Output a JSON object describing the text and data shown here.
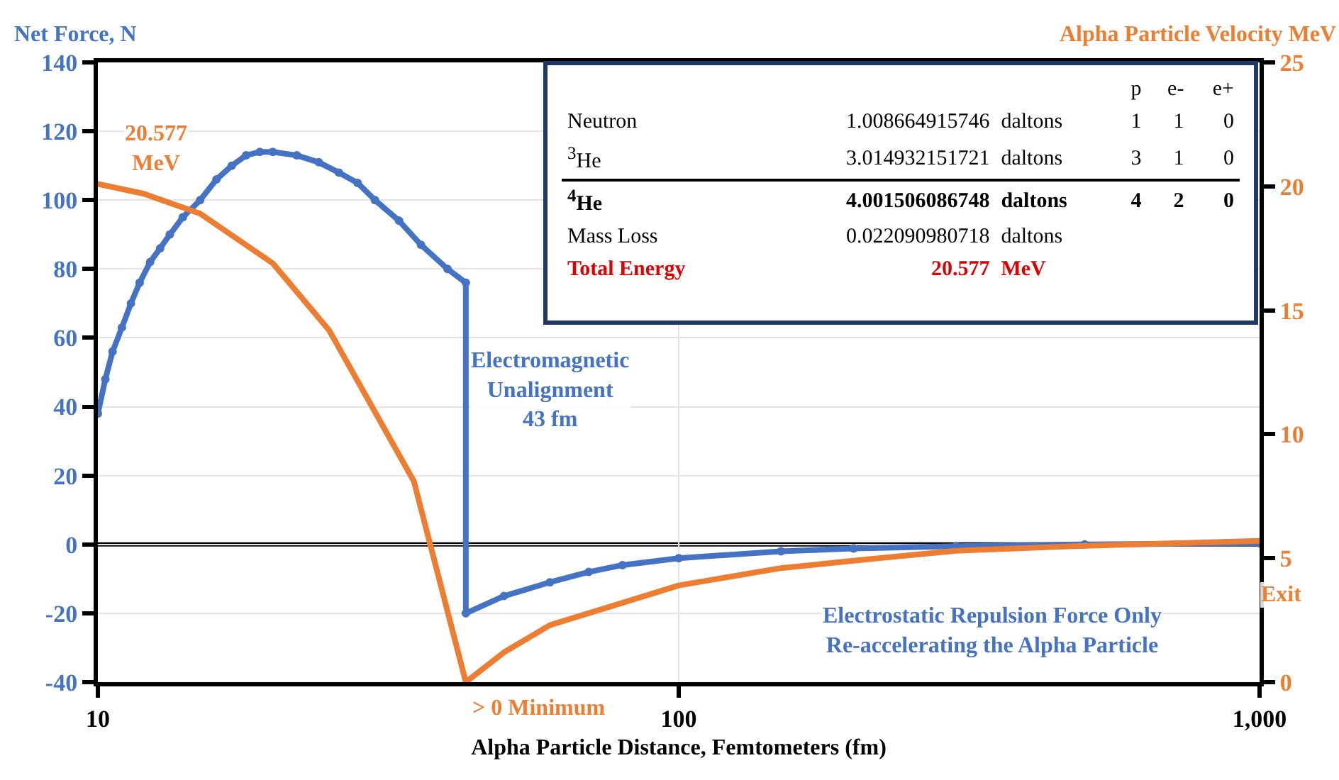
{
  "chart_data": {
    "type": "line",
    "xlabel": "Alpha Particle Distance, Femtometers (fm)",
    "ylabel": "Net Force, N",
    "y2label": "Alpha Particle Velocity MeV",
    "log": "x",
    "xlim": [
      10,
      1000
    ],
    "xticks": [
      10,
      100,
      {
        "value": 1000,
        "label": "1,000"
      }
    ],
    "ylim": [
      -40,
      140
    ],
    "yticks": [
      -40,
      -20,
      0,
      20,
      40,
      60,
      80,
      100,
      120,
      140
    ],
    "y2lim": [
      0,
      25
    ],
    "y2ticks": [
      0,
      5,
      10,
      15,
      20,
      25
    ],
    "grid": true,
    "series": [
      {
        "color": "#4472c4",
        "marker": "circle",
        "x": [
          10,
          10.3,
          10.6,
          11,
          11.4,
          11.8,
          12.3,
          12.8,
          13.3,
          14,
          15,
          16,
          17,
          18,
          19,
          20,
          22,
          24,
          26,
          28,
          30,
          33,
          36,
          40,
          43,
          43,
          50,
          60,
          70,
          80,
          100,
          150,
          200,
          300,
          500,
          1000
        ],
        "values": [
          38,
          48,
          56,
          63,
          70,
          76,
          82,
          86,
          90,
          95,
          100,
          106,
          110,
          113,
          114,
          114,
          113,
          111,
          108,
          105,
          100,
          94,
          87,
          80,
          76,
          -20,
          -15,
          -11,
          -8,
          -6,
          -4,
          -2,
          -1.2,
          -0.5,
          0,
          0.3
        ]
      },
      {
        "color": "#ed7d31",
        "axis": "y2",
        "marker": "none",
        "x": [
          10,
          12,
          15,
          20,
          25,
          30,
          35,
          43,
          50,
          60,
          80,
          100,
          150,
          200,
          300,
          500,
          1000
        ],
        "values": [
          20.1,
          19.7,
          18.9,
          16.9,
          14.2,
          10.9,
          8.1,
          0,
          1.2,
          2.3,
          3.2,
          3.9,
          4.6,
          4.9,
          5.3,
          5.5,
          5.7
        ]
      }
    ],
    "ref_lines": [
      {
        "axis": "y",
        "value": 0,
        "color": "#000000"
      }
    ],
    "annotations": [
      "20.577\nMeV",
      "Electromagnetic\nUnalignment\n43 fm",
      "> 0 Minimum",
      "Electrostatic Repulsion Force Only\nRe-accelerating the Alpha Particle",
      "Exit",
      "p\te-\te+",
      "Neutron\t1.008664915746\tdaltons\t1\t1\t0",
      "$^{3}$He\t3.014932151721\tdaltons\t3\t1\t0",
      "$^{4}$He\t4.001506086748\tdaltons\t4\t2\t0",
      "Mass Loss\t0.022090980718\tdaltons",
      "Total Energy\t20.577\tMeV"
    ]
  }
}
